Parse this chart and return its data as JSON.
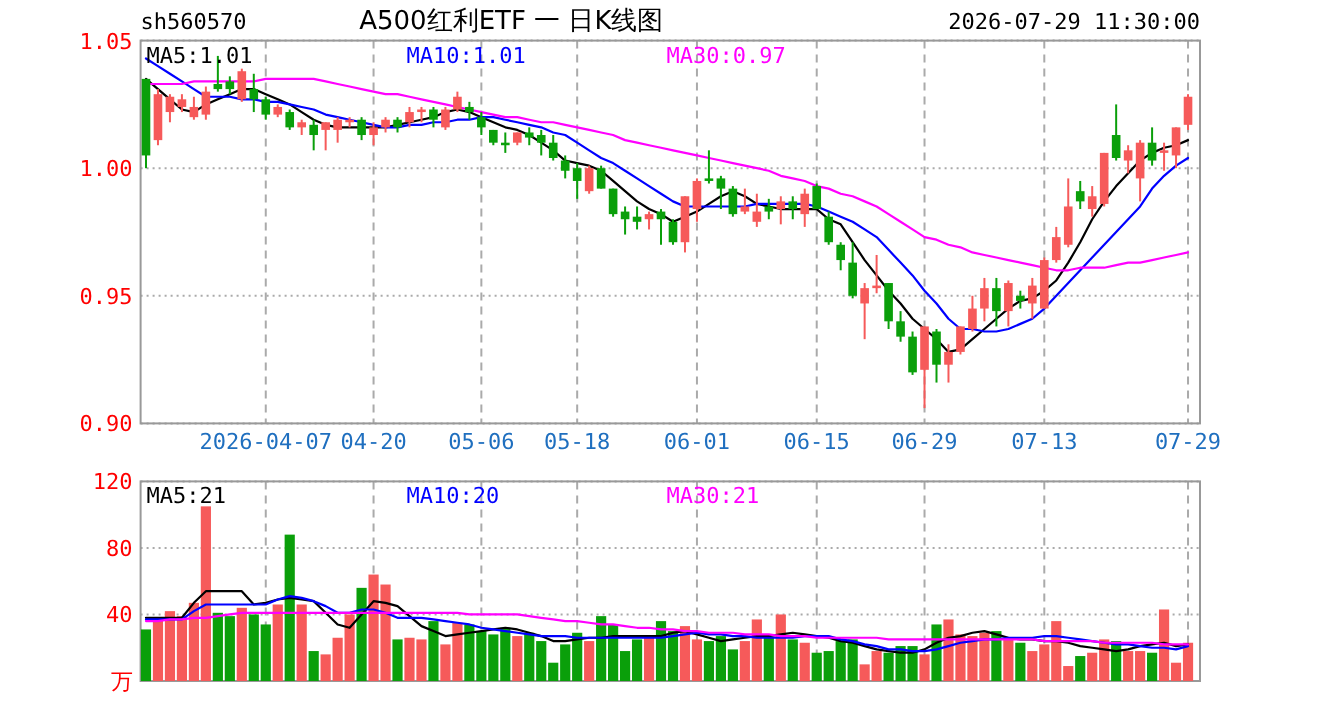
{
  "chart_data": [
    {
      "type": "candlestick",
      "title": "A500红利ETF 一 日K线图",
      "annotations": [
        "sh560570",
        "2026-07-29 11:30:00"
      ],
      "categories": [
        null,
        null,
        null,
        null,
        null,
        null,
        null,
        null,
        null,
        null,
        "2026-04-07",
        null,
        null,
        null,
        null,
        null,
        null,
        null,
        null,
        "04-20",
        null,
        null,
        null,
        null,
        null,
        null,
        null,
        null,
        "05-06",
        null,
        null,
        null,
        null,
        null,
        null,
        null,
        "05-18",
        null,
        null,
        null,
        null,
        null,
        null,
        null,
        null,
        null,
        "06-01",
        null,
        null,
        null,
        null,
        null,
        null,
        null,
        null,
        null,
        "06-15",
        null,
        null,
        null,
        null,
        null,
        null,
        null,
        null,
        "06-29",
        null,
        null,
        null,
        null,
        null,
        null,
        null,
        null,
        null,
        "07-13",
        null,
        null,
        null,
        null,
        null,
        null,
        null,
        null,
        null,
        null,
        null,
        "07-29"
      ],
      "ohlc": [
        [
          1.035,
          1.035,
          1.0,
          1.005
        ],
        [
          1.011,
          1.031,
          1.009,
          1.029
        ],
        [
          1.022,
          1.029,
          1.018,
          1.028
        ],
        [
          1.024,
          1.029,
          1.022,
          1.027
        ],
        [
          1.02,
          1.028,
          1.019,
          1.024
        ],
        [
          1.021,
          1.032,
          1.019,
          1.03
        ],
        [
          1.033,
          1.044,
          1.03,
          1.031
        ],
        [
          1.034,
          1.036,
          1.029,
          1.031
        ],
        [
          1.027,
          1.039,
          1.026,
          1.038
        ],
        [
          1.031,
          1.037,
          1.022,
          1.027
        ],
        [
          1.027,
          1.028,
          1.019,
          1.021
        ],
        [
          1.021,
          1.025,
          1.02,
          1.024
        ],
        [
          1.022,
          1.023,
          1.015,
          1.016
        ],
        [
          1.016,
          1.019,
          1.013,
          1.018
        ],
        [
          1.017,
          1.019,
          1.007,
          1.013
        ],
        [
          1.015,
          1.018,
          1.007,
          1.018
        ],
        [
          1.015,
          1.02,
          1.01,
          1.019
        ],
        [
          1.018,
          1.02,
          1.016,
          1.019
        ],
        [
          1.019,
          1.02,
          1.011,
          1.013
        ],
        [
          1.013,
          1.018,
          1.009,
          1.016
        ],
        [
          1.016,
          1.02,
          1.014,
          1.019
        ],
        [
          1.019,
          1.02,
          1.014,
          1.016
        ],
        [
          1.018,
          1.024,
          1.016,
          1.022
        ],
        [
          1.022,
          1.024,
          1.018,
          1.023
        ],
        [
          1.023,
          1.024,
          1.016,
          1.019
        ],
        [
          1.016,
          1.024,
          1.015,
          1.023
        ],
        [
          1.023,
          1.03,
          1.022,
          1.028
        ],
        [
          1.024,
          1.026,
          1.019,
          1.022
        ],
        [
          1.02,
          1.022,
          1.013,
          1.016
        ],
        [
          1.015,
          1.015,
          1.009,
          1.01
        ],
        [
          1.01,
          1.014,
          1.006,
          1.009
        ],
        [
          1.01,
          1.014,
          1.009,
          1.014
        ],
        [
          1.014,
          1.016,
          1.009,
          1.012
        ],
        [
          1.013,
          1.015,
          1.005,
          1.01
        ],
        [
          1.01,
          1.013,
          1.003,
          1.004
        ],
        [
          1.003,
          1.005,
          0.996,
          0.999
        ],
        [
          1.0,
          1.002,
          0.988,
          0.995
        ],
        [
          0.991,
          1.001,
          0.99,
          1.0
        ],
        [
          1.0,
          1.001,
          0.992,
          0.992
        ],
        [
          0.992,
          0.992,
          0.981,
          0.982
        ],
        [
          0.983,
          0.985,
          0.974,
          0.98
        ],
        [
          0.981,
          0.985,
          0.976,
          0.979
        ],
        [
          0.98,
          0.983,
          0.976,
          0.982
        ],
        [
          0.983,
          0.984,
          0.97,
          0.98
        ],
        [
          0.979,
          0.98,
          0.97,
          0.971
        ],
        [
          0.971,
          0.989,
          0.967,
          0.989
        ],
        [
          0.984,
          0.996,
          0.979,
          0.995
        ],
        [
          0.996,
          1.007,
          0.994,
          0.995
        ],
        [
          0.996,
          0.997,
          0.984,
          0.992
        ],
        [
          0.992,
          0.993,
          0.981,
          0.982
        ],
        [
          0.983,
          0.992,
          0.982,
          0.985
        ],
        [
          0.979,
          0.99,
          0.977,
          0.983
        ],
        [
          0.985,
          0.988,
          0.98,
          0.983
        ],
        [
          0.984,
          0.989,
          0.978,
          0.987
        ],
        [
          0.987,
          0.989,
          0.98,
          0.984
        ],
        [
          0.982,
          0.992,
          0.977,
          0.99
        ],
        [
          0.993,
          0.994,
          0.984,
          0.984
        ],
        [
          0.981,
          0.983,
          0.97,
          0.971
        ],
        [
          0.97,
          0.971,
          0.96,
          0.964
        ],
        [
          0.963,
          0.971,
          0.949,
          0.95
        ],
        [
          0.947,
          0.955,
          0.933,
          0.953
        ],
        [
          0.953,
          0.966,
          0.951,
          0.954
        ],
        [
          0.955,
          0.955,
          0.937,
          0.94
        ],
        [
          0.94,
          0.944,
          0.932,
          0.934
        ],
        [
          0.934,
          0.936,
          0.919,
          0.92
        ],
        [
          0.921,
          0.938,
          0.906,
          0.938
        ],
        [
          0.936,
          0.937,
          0.916,
          0.923
        ],
        [
          0.923,
          0.931,
          0.916,
          0.928
        ],
        [
          0.928,
          0.938,
          0.927,
          0.938
        ],
        [
          0.937,
          0.95,
          0.936,
          0.945
        ],
        [
          0.945,
          0.957,
          0.94,
          0.953
        ],
        [
          0.953,
          0.957,
          0.938,
          0.944
        ],
        [
          0.944,
          0.956,
          0.938,
          0.955
        ],
        [
          0.95,
          0.952,
          0.945,
          0.948
        ],
        [
          0.947,
          0.957,
          0.941,
          0.954
        ],
        [
          0.945,
          0.965,
          0.945,
          0.964
        ],
        [
          0.964,
          0.977,
          0.963,
          0.973
        ],
        [
          0.97,
          0.996,
          0.969,
          0.985
        ],
        [
          0.991,
          0.995,
          0.984,
          0.987
        ],
        [
          0.984,
          0.993,
          0.981,
          0.989
        ],
        [
          0.986,
          1.006,
          0.985,
          1.006
        ],
        [
          1.013,
          1.025,
          1.003,
          1.004
        ],
        [
          1.003,
          1.009,
          0.998,
          1.007
        ],
        [
          0.996,
          1.011,
          0.987,
          1.01
        ],
        [
          1.01,
          1.016,
          1.001,
          1.003
        ],
        [
          1.006,
          1.01,
          0.999,
          1.007
        ],
        [
          1.005,
          1.016,
          1.0,
          1.016
        ],
        [
          1.017,
          1.029,
          1.015,
          1.028
        ]
      ],
      "colors": [
        "#0a9f0a",
        "#f65a5a",
        "#f65a5a",
        "#f65a5a",
        "#f65a5a",
        "#f65a5a",
        "#0a9f0a",
        "#0a9f0a",
        "#f65a5a",
        "#0a9f0a",
        "#0a9f0a",
        "#f65a5a",
        "#0a9f0a",
        "#f65a5a",
        "#0a9f0a",
        "#f65a5a",
        "#f65a5a",
        "#f65a5a",
        "#0a9f0a",
        "#f65a5a",
        "#f65a5a",
        "#0a9f0a",
        "#f65a5a",
        "#f65a5a",
        "#0a9f0a",
        "#f65a5a",
        "#f65a5a",
        "#0a9f0a",
        "#0a9f0a",
        "#0a9f0a",
        "#0a9f0a",
        "#f65a5a",
        "#0a9f0a",
        "#0a9f0a",
        "#0a9f0a",
        "#0a9f0a",
        "#0a9f0a",
        "#f65a5a",
        "#0a9f0a",
        "#0a9f0a",
        "#0a9f0a",
        "#0a9f0a",
        "#f65a5a",
        "#0a9f0a",
        "#0a9f0a",
        "#f65a5a",
        "#f65a5a",
        "#0a9f0a",
        "#0a9f0a",
        "#0a9f0a",
        "#f65a5a",
        "#f65a5a",
        "#0a9f0a",
        "#f65a5a",
        "#0a9f0a",
        "#f65a5a",
        "#0a9f0a",
        "#0a9f0a",
        "#0a9f0a",
        "#0a9f0a",
        "#f65a5a",
        "#f65a5a",
        "#0a9f0a",
        "#0a9f0a",
        "#0a9f0a",
        "#f65a5a",
        "#0a9f0a",
        "#f65a5a",
        "#f65a5a",
        "#f65a5a",
        "#f65a5a",
        "#0a9f0a",
        "#f65a5a",
        "#0a9f0a",
        "#f65a5a",
        "#f65a5a",
        "#f65a5a",
        "#f65a5a",
        "#0a9f0a",
        "#f65a5a",
        "#f65a5a",
        "#0a9f0a",
        "#f65a5a",
        "#f65a5a",
        "#0a9f0a",
        "#f65a5a",
        "#f65a5a",
        "#f65a5a"
      ],
      "series": [
        {
          "name": "MA5:1.01",
          "type": "line",
          "color": "#000000",
          "values": [
            1.035,
            1.031,
            1.027,
            1.023,
            1.022,
            1.025,
            1.027,
            1.029,
            1.031,
            1.031,
            1.029,
            1.027,
            1.025,
            1.022,
            1.019,
            1.017,
            1.016,
            1.016,
            1.016,
            1.016,
            1.016,
            1.017,
            1.018,
            1.019,
            1.02,
            1.022,
            1.023,
            1.022,
            1.02,
            1.018,
            1.016,
            1.015,
            1.013,
            1.01,
            1.007,
            1.003,
            1.002,
            1.001,
            0.999,
            0.995,
            0.991,
            0.987,
            0.984,
            0.982,
            0.979,
            0.981,
            0.983,
            0.986,
            0.989,
            0.991,
            0.989,
            0.986,
            0.985,
            0.984,
            0.984,
            0.984,
            0.984,
            0.98,
            0.978,
            0.971,
            0.964,
            0.958,
            0.952,
            0.947,
            0.941,
            0.937,
            0.933,
            0.928,
            0.929,
            0.933,
            0.937,
            0.941,
            0.945,
            0.948,
            0.949,
            0.952,
            0.956,
            0.963,
            0.971,
            0.98,
            0.987,
            0.993,
            0.998,
            1.003,
            1.006,
            1.008,
            1.009,
            1.011
          ]
        },
        {
          "name": "MA10:1.01",
          "type": "line",
          "color": "#0000ff",
          "values": [
            1.043,
            1.04,
            1.037,
            1.034,
            1.031,
            1.028,
            1.028,
            1.028,
            1.027,
            1.027,
            1.026,
            1.026,
            1.025,
            1.024,
            1.023,
            1.021,
            1.02,
            1.019,
            1.018,
            1.017,
            1.016,
            1.016,
            1.017,
            1.017,
            1.018,
            1.018,
            1.019,
            1.019,
            1.02,
            1.02,
            1.019,
            1.018,
            1.017,
            1.016,
            1.014,
            1.013,
            1.01,
            1.007,
            1.004,
            1.002,
            0.999,
            0.996,
            0.993,
            0.99,
            0.987,
            0.985,
            0.985,
            0.985,
            0.985,
            0.985,
            0.985,
            0.986,
            0.986,
            0.986,
            0.986,
            0.986,
            0.985,
            0.983,
            0.981,
            0.979,
            0.976,
            0.973,
            0.968,
            0.963,
            0.958,
            0.952,
            0.947,
            0.941,
            0.937,
            0.937,
            0.936,
            0.936,
            0.937,
            0.939,
            0.941,
            0.945,
            0.95,
            0.955,
            0.96,
            0.965,
            0.97,
            0.975,
            0.98,
            0.985,
            0.992,
            0.997,
            1.001,
            1.004
          ]
        },
        {
          "name": "MA30:0.97",
          "type": "line",
          "color": "#ff00ff",
          "values": [
            1.033,
            1.033,
            1.033,
            1.033,
            1.034,
            1.034,
            1.034,
            1.034,
            1.034,
            1.034,
            1.035,
            1.035,
            1.035,
            1.035,
            1.035,
            1.034,
            1.033,
            1.032,
            1.031,
            1.03,
            1.029,
            1.029,
            1.028,
            1.027,
            1.026,
            1.025,
            1.024,
            1.023,
            1.022,
            1.021,
            1.02,
            1.02,
            1.019,
            1.018,
            1.018,
            1.017,
            1.016,
            1.015,
            1.014,
            1.013,
            1.011,
            1.01,
            1.009,
            1.008,
            1.007,
            1.006,
            1.005,
            1.004,
            1.003,
            1.002,
            1.001,
            1.0,
            0.999,
            0.997,
            0.996,
            0.995,
            0.993,
            0.992,
            0.99,
            0.989,
            0.987,
            0.985,
            0.982,
            0.979,
            0.976,
            0.973,
            0.972,
            0.97,
            0.969,
            0.967,
            0.966,
            0.965,
            0.964,
            0.963,
            0.962,
            0.961,
            0.96,
            0.96,
            0.961,
            0.961,
            0.961,
            0.962,
            0.963,
            0.963,
            0.964,
            0.965,
            0.966,
            0.967
          ]
        }
      ],
      "ylim": [
        0.9,
        1.05
      ],
      "yticks": [
        {
          "value": 0.9,
          "label": "0.90"
        },
        0.95,
        {
          "value": 1,
          "label": "1.00"
        },
        1.05
      ],
      "grid": true,
      "legend": "top left"
    },
    {
      "type": "bar",
      "categories": [
        null,
        null,
        null,
        null,
        null,
        null,
        null,
        null,
        null,
        null,
        null,
        null,
        null,
        null,
        null,
        null,
        null,
        null,
        null,
        null,
        null,
        null,
        null,
        null,
        null,
        null,
        null,
        null,
        null,
        null,
        null,
        null,
        null,
        null,
        null,
        null,
        null,
        null,
        null,
        null,
        null,
        null,
        null,
        null,
        null,
        null,
        null,
        null,
        null,
        null,
        null,
        null,
        null,
        null,
        null,
        null,
        null,
        null,
        null,
        null,
        null,
        null,
        null,
        null,
        null,
        null,
        null,
        null,
        null,
        null,
        null,
        null,
        null,
        null,
        null,
        null,
        null,
        null,
        null,
        null,
        null,
        null,
        null,
        null,
        null,
        null,
        null,
        null
      ],
      "series": [
        {
          "type": "bar",
          "values": [
            31,
            37,
            42,
            39,
            47,
            105,
            41,
            39,
            44,
            40,
            34,
            46,
            88,
            46,
            18,
            16,
            26,
            40,
            56,
            64,
            58,
            25,
            26,
            25,
            36,
            22,
            35,
            34,
            30,
            28,
            32,
            27,
            29,
            24,
            11,
            22,
            29,
            24,
            39,
            34,
            18,
            25,
            26,
            36,
            30,
            33,
            25,
            24,
            27,
            19,
            24,
            37,
            26,
            40,
            25,
            23,
            17,
            18,
            24,
            25,
            10,
            18,
            17,
            21,
            21,
            16,
            34,
            37,
            28,
            27,
            29,
            30,
            25,
            23,
            18,
            22,
            36,
            9,
            15,
            17,
            25,
            24,
            18,
            18,
            17,
            43,
            11,
            23
          ],
          "colors": [
            "#0a9f0a",
            "#f65a5a",
            "#f65a5a",
            "#f65a5a",
            "#f65a5a",
            "#f65a5a",
            "#0a9f0a",
            "#0a9f0a",
            "#f65a5a",
            "#0a9f0a",
            "#0a9f0a",
            "#f65a5a",
            "#0a9f0a",
            "#f65a5a",
            "#0a9f0a",
            "#f65a5a",
            "#f65a5a",
            "#f65a5a",
            "#0a9f0a",
            "#f65a5a",
            "#f65a5a",
            "#0a9f0a",
            "#f65a5a",
            "#f65a5a",
            "#0a9f0a",
            "#f65a5a",
            "#f65a5a",
            "#0a9f0a",
            "#0a9f0a",
            "#0a9f0a",
            "#0a9f0a",
            "#f65a5a",
            "#0a9f0a",
            "#0a9f0a",
            "#0a9f0a",
            "#0a9f0a",
            "#0a9f0a",
            "#f65a5a",
            "#0a9f0a",
            "#0a9f0a",
            "#0a9f0a",
            "#0a9f0a",
            "#f65a5a",
            "#0a9f0a",
            "#0a9f0a",
            "#f65a5a",
            "#f65a5a",
            "#0a9f0a",
            "#0a9f0a",
            "#0a9f0a",
            "#f65a5a",
            "#f65a5a",
            "#0a9f0a",
            "#f65a5a",
            "#0a9f0a",
            "#f65a5a",
            "#0a9f0a",
            "#0a9f0a",
            "#0a9f0a",
            "#0a9f0a",
            "#f65a5a",
            "#f65a5a",
            "#0a9f0a",
            "#0a9f0a",
            "#0a9f0a",
            "#f65a5a",
            "#0a9f0a",
            "#f65a5a",
            "#f65a5a",
            "#f65a5a",
            "#f65a5a",
            "#0a9f0a",
            "#f65a5a",
            "#0a9f0a",
            "#f65a5a",
            "#f65a5a",
            "#f65a5a",
            "#f65a5a",
            "#0a9f0a",
            "#f65a5a",
            "#f65a5a",
            "#0a9f0a",
            "#f65a5a",
            "#f65a5a",
            "#0a9f0a",
            "#f65a5a",
            "#f65a5a",
            "#f65a5a"
          ]
        },
        {
          "name": "MA5:21",
          "type": "line",
          "color": "#000000",
          "values": [
            38,
            38,
            38,
            38,
            47,
            54,
            54,
            54,
            54,
            46,
            47,
            49,
            50,
            49,
            48,
            41,
            34,
            32,
            40,
            48,
            47,
            45,
            39,
            33,
            30,
            27,
            28,
            29,
            30,
            31,
            32,
            31,
            29,
            27,
            24,
            24,
            25,
            26,
            26,
            27,
            27,
            27,
            27,
            27,
            29,
            30,
            28,
            26,
            24,
            25,
            26,
            27,
            27,
            28,
            29,
            28,
            27,
            26,
            24,
            23,
            21,
            19,
            18,
            17,
            17,
            19,
            23,
            26,
            27,
            29,
            30,
            28,
            26,
            25,
            25,
            24,
            24,
            23,
            21,
            20,
            19,
            18,
            19,
            21,
            22,
            23,
            21,
            22
          ]
        },
        {
          "name": "MA10:20",
          "type": "line",
          "color": "#0000ff",
          "values": [
            37,
            37,
            37,
            37,
            42,
            46,
            46,
            46,
            46,
            46,
            46,
            49,
            51,
            50,
            48,
            45,
            41,
            41,
            43,
            43,
            41,
            38,
            38,
            38,
            37,
            36,
            35,
            34,
            32,
            31,
            30,
            29,
            28,
            27,
            27,
            27,
            26,
            26,
            26,
            26,
            26,
            26,
            26,
            26,
            27,
            28,
            29,
            28,
            28,
            27,
            27,
            26,
            26,
            26,
            26,
            27,
            27,
            27,
            25,
            24,
            22,
            21,
            19,
            19,
            18,
            18,
            19,
            21,
            23,
            24,
            25,
            25,
            26,
            26,
            26,
            27,
            27,
            26,
            25,
            24,
            23,
            22,
            22,
            21,
            20,
            20,
            19,
            21
          ]
        },
        {
          "name": "MA30:21",
          "type": "line",
          "color": "#ff00ff",
          "values": [
            36,
            36,
            37,
            37,
            38,
            38,
            39,
            40,
            41,
            41,
            41,
            41,
            41,
            41,
            41,
            41,
            41,
            41,
            41,
            41,
            41,
            41,
            41,
            41,
            41,
            41,
            41,
            40,
            40,
            40,
            40,
            40,
            39,
            38,
            37,
            36,
            36,
            35,
            34,
            34,
            33,
            32,
            32,
            31,
            31,
            30,
            30,
            29,
            29,
            29,
            28,
            28,
            28,
            27,
            27,
            27,
            26,
            26,
            26,
            26,
            26,
            26,
            25,
            25,
            25,
            25,
            25,
            25,
            25,
            25,
            25,
            25,
            25,
            25,
            25,
            24,
            24,
            24,
            24,
            24,
            23,
            23,
            23,
            23,
            23,
            22,
            22,
            22
          ]
        }
      ],
      "ylim": [
        0,
        120
      ],
      "yticks": [
        {
          "value": 0,
          "label": "万"
        },
        40,
        80,
        120
      ],
      "grid": true,
      "legend": "top left",
      "tick_labels": "y"
    }
  ]
}
